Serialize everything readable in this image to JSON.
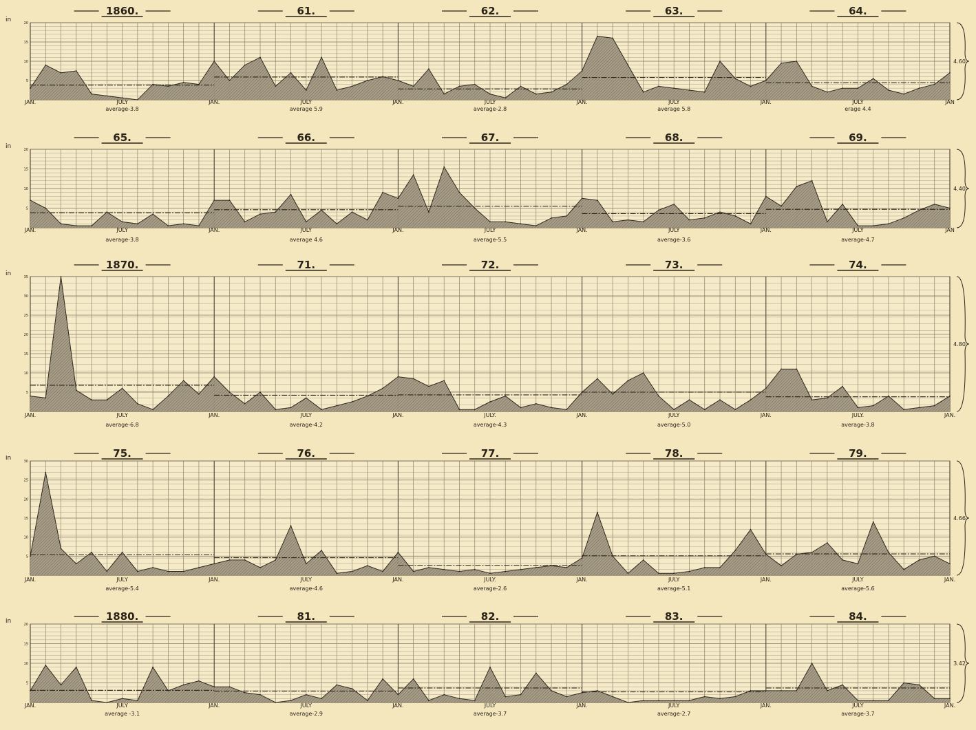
{
  "chart_data": [
    {
      "type": "area",
      "units": "in",
      "ylim": [
        0,
        20
      ],
      "yticks": [
        5,
        10,
        15,
        20
      ],
      "years": [
        "1860.",
        "61.",
        "62.",
        "63.",
        "64."
      ],
      "month_labels": [
        "JAN.",
        "JULY",
        "JAN.",
        "JULY",
        "JAN.",
        "JULY",
        "JAN.",
        "JULY",
        "JAN.",
        "JULY",
        "JAN"
      ],
      "averages": [
        "average-3.8",
        "average 5.9",
        "average-2.8",
        "average 5.8",
        "erage 4.4"
      ],
      "average_values": [
        3.8,
        5.9,
        2.8,
        5.8,
        4.4
      ],
      "side_value": "4.60",
      "values": [
        3,
        9,
        7,
        7.5,
        1.5,
        1,
        0.5,
        0,
        4,
        3.5,
        4.5,
        4,
        10,
        5,
        9,
        11,
        3.5,
        7,
        2.5,
        11,
        2.5,
        3.5,
        5,
        6,
        5,
        3.5,
        8,
        1.5,
        3.5,
        4,
        1.5,
        0.5,
        3.5,
        1.5,
        2,
        4,
        7.5,
        16.5,
        16,
        9,
        2,
        3.5,
        3,
        2.5,
        2,
        10,
        5.5,
        3.5,
        5,
        9.5,
        10,
        3.5,
        2,
        3,
        3,
        5.5,
        2.5,
        1.5,
        3,
        4,
        7
      ]
    },
    {
      "type": "area",
      "units": "in",
      "ylim": [
        0,
        20
      ],
      "yticks": [
        5,
        10,
        15,
        20
      ],
      "years": [
        "65.",
        "66.",
        "67.",
        "68.",
        "69."
      ],
      "month_labels": [
        "JAN.",
        "JULY",
        "JAN.",
        "JULY",
        "JAN.",
        "JULY",
        "JAN.",
        "JULY",
        "JAN.",
        "JULY",
        "JAN"
      ],
      "averages": [
        "average-3.8",
        "average 4.6",
        "average-5.5",
        "average-3.6",
        "average-4.7"
      ],
      "average_values": [
        3.8,
        4.6,
        5.5,
        3.6,
        4.7
      ],
      "side_value": "4.40",
      "values": [
        7,
        5,
        1,
        0.5,
        0.5,
        4,
        1.5,
        1,
        3.5,
        0.5,
        1,
        0.5,
        7,
        7,
        1.5,
        3.5,
        4,
        8.5,
        1.5,
        4.5,
        1,
        4,
        2,
        9,
        7.5,
        13.5,
        4,
        15.5,
        9,
        5,
        1.5,
        1.5,
        1,
        0.5,
        2.5,
        3,
        7.5,
        7,
        1.5,
        2,
        1.5,
        4.5,
        6,
        2,
        2.5,
        4,
        3,
        1,
        8,
        5.5,
        10.5,
        12,
        1.5,
        6,
        0.5,
        0.5,
        1,
        2.5,
        4.5,
        6,
        5
      ]
    },
    {
      "type": "area",
      "units": "in",
      "ylim": [
        0,
        35
      ],
      "yticks": [
        5,
        10,
        15,
        20,
        25,
        30,
        35
      ],
      "years": [
        "1870.",
        "71.",
        "72.",
        "73.",
        "74."
      ],
      "month_labels": [
        "JAN.",
        "JULY",
        "JAN.",
        "JULY",
        "JAN.",
        "JULY.",
        "JAN.",
        "JULY",
        "JAN.",
        "JULY.",
        "JAN."
      ],
      "averages": [
        "average-6.8",
        "average-4.2",
        "average-4.3",
        "average-5.0",
        "average-3.8"
      ],
      "average_values": [
        6.8,
        4.2,
        4.3,
        5.0,
        3.8
      ],
      "side_value": "4.80",
      "values": [
        4,
        3.5,
        35,
        5.5,
        3,
        3,
        6,
        2,
        0.5,
        4,
        8,
        4.5,
        9,
        5,
        2,
        5,
        0.5,
        1,
        3.5,
        0.5,
        1.5,
        2.5,
        4,
        6,
        9,
        8.5,
        6.5,
        8,
        0.5,
        0.5,
        2.5,
        4,
        1,
        2,
        1,
        0.5,
        5,
        8.5,
        4.5,
        8,
        10,
        4,
        0.5,
        3,
        0.5,
        3,
        0.5,
        3,
        6,
        11,
        11,
        3,
        3.5,
        6.5,
        1,
        1.5,
        4,
        0.5,
        1,
        1.5,
        4
      ]
    },
    {
      "type": "area",
      "units": "in",
      "ylim": [
        0,
        30
      ],
      "yticks": [
        5,
        10,
        15,
        20,
        25,
        30
      ],
      "years": [
        "75.",
        "76.",
        "77.",
        "78.",
        "79."
      ],
      "month_labels": [
        "JAN.",
        "JULY",
        "JAN.",
        "JULY",
        "JAN.",
        "JULY.",
        "JAN.",
        "JULY",
        "JAN.",
        "JULY",
        "JAN."
      ],
      "averages": [
        "average-5.4",
        "average-4.6",
        "average-2.6",
        "average-5.1",
        "average-5.6"
      ],
      "average_values": [
        5.4,
        4.6,
        2.6,
        5.1,
        5.6
      ],
      "side_value": "4.66",
      "values": [
        5,
        27,
        7,
        3,
        6,
        1,
        6,
        1,
        2,
        1,
        1,
        2,
        3,
        4,
        4,
        2,
        4,
        13,
        3,
        6.5,
        0.5,
        1,
        2.5,
        1,
        6,
        1,
        2,
        1.5,
        1,
        1.5,
        0.5,
        1,
        1.5,
        2,
        2.5,
        2,
        4.5,
        16.5,
        5,
        0.5,
        4,
        0.5,
        0.5,
        1,
        2,
        2,
        6.5,
        12,
        5.5,
        2.5,
        5.5,
        6,
        8.5,
        4,
        3,
        14,
        6,
        1.5,
        4,
        5,
        3
      ]
    },
    {
      "type": "area",
      "units": "in",
      "ylim": [
        0,
        20
      ],
      "yticks": [
        5,
        10,
        15,
        20
      ],
      "years": [
        "1880.",
        "81.",
        "82.",
        "83.",
        "84."
      ],
      "month_labels": [
        "JAN.",
        "JULY",
        "JAN.",
        "JULY",
        "JAN.",
        "JULY",
        "JAN.",
        "JULY",
        "JAN.",
        "JULY",
        "JAN."
      ],
      "averages": [
        "average -3.1",
        "average-2.9",
        "average-3.7",
        "average-2.7",
        "average-3.7"
      ],
      "average_values": [
        3.1,
        2.9,
        3.7,
        2.7,
        3.7
      ],
      "side_value": "3.42",
      "values": [
        3,
        9.5,
        4.5,
        9,
        0.5,
        0,
        1,
        0.5,
        9,
        3,
        4.5,
        5.5,
        4,
        4,
        2.5,
        2,
        0,
        0.5,
        2,
        1,
        4.5,
        3.5,
        0.5,
        6,
        2,
        6,
        0.5,
        2,
        1,
        0.5,
        9,
        1.5,
        2,
        7.5,
        3,
        1.5,
        2.5,
        3,
        1.5,
        0,
        0.5,
        0.5,
        0.5,
        0.5,
        1.5,
        1,
        1.5,
        3,
        3,
        3,
        3,
        10,
        3,
        4.5,
        0.5,
        0.5,
        0.5,
        5,
        4.5,
        1,
        1
      ]
    }
  ]
}
